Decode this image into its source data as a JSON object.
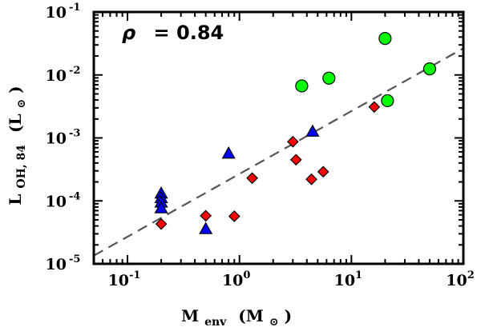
{
  "chart_data": {
    "type": "scatter",
    "title": "",
    "xscale": "log",
    "yscale": "log",
    "xlim": [
      0.05,
      100
    ],
    "ylim": [
      1e-05,
      0.1
    ],
    "x_ticks": [
      {
        "base": "10",
        "exp": "-1",
        "value": 0.1
      },
      {
        "base": "10",
        "exp": "0",
        "value": 1
      },
      {
        "base": "10",
        "exp": "1",
        "value": 10
      },
      {
        "base": "10",
        "exp": "2",
        "value": 100
      }
    ],
    "y_ticks": [
      {
        "base": "10",
        "exp": "-5",
        "value": 1e-05
      },
      {
        "base": "10",
        "exp": "-4",
        "value": 0.0001
      },
      {
        "base": "10",
        "exp": "-3",
        "value": 0.001
      },
      {
        "base": "10",
        "exp": "-2",
        "value": 0.01
      },
      {
        "base": "10",
        "exp": "-1",
        "value": 0.1
      }
    ],
    "xlabel": {
      "main": "M",
      "sub": "env",
      "unit": "(M",
      "unit_sub": "⊙",
      "unit_close": ")"
    },
    "ylabel": {
      "main": "L",
      "sub": "OH, 84",
      "unit": "(L",
      "unit_sub": "⊙",
      "unit_close": ")"
    },
    "annotation": {
      "symbol": "ρ",
      "text": "= 0.84"
    },
    "fit_line": {
      "style": "dashed",
      "color": "#555555",
      "points": [
        [
          0.05,
          1.35e-05
        ],
        [
          100,
          0.0265
        ]
      ]
    },
    "series": [
      {
        "name": "triangles",
        "marker": "triangle",
        "color": "#0000ff",
        "points": [
          [
            0.2,
            0.000132
          ],
          [
            0.2,
            0.000112
          ],
          [
            0.2,
            9.5e-05
          ],
          [
            0.2,
            7.7e-05
          ],
          [
            0.5,
            3.6e-05
          ],
          [
            0.8,
            0.00057
          ],
          [
            4.5,
            0.00127
          ]
        ]
      },
      {
        "name": "diamonds",
        "marker": "diamond",
        "color": "#ff0000",
        "points": [
          [
            0.2,
            4.3e-05
          ],
          [
            0.5,
            5.8e-05
          ],
          [
            0.9,
            5.7e-05
          ],
          [
            1.3,
            0.00023
          ],
          [
            3.0,
            0.00087
          ],
          [
            3.2,
            0.00045
          ],
          [
            4.4,
            0.00022
          ],
          [
            5.6,
            0.00029
          ],
          [
            16,
            0.0031
          ]
        ]
      },
      {
        "name": "circles",
        "marker": "circle",
        "color": "#00ff00",
        "points": [
          [
            3.6,
            0.0067
          ],
          [
            6.3,
            0.0089
          ],
          [
            20,
            0.038
          ],
          [
            21,
            0.0039
          ],
          [
            50,
            0.0125
          ]
        ]
      }
    ]
  }
}
